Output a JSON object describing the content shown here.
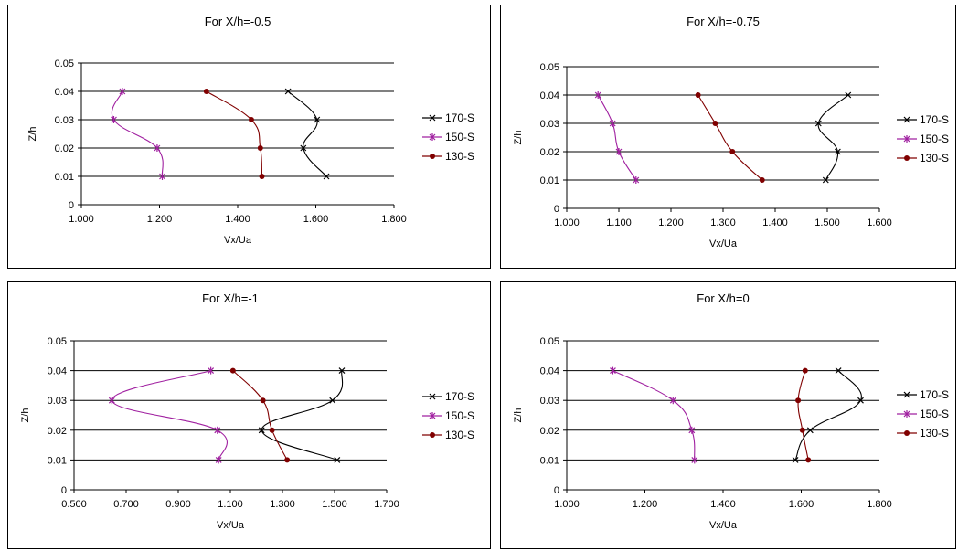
{
  "chart_data": [
    {
      "type": "line",
      "title": "For X/h=-0.5",
      "xlabel": "Vx/Ua",
      "ylabel": "Z/h",
      "xlim": [
        1.0,
        1.8
      ],
      "ylim": [
        0,
        0.05
      ],
      "xticks": [
        "1.000",
        "1.200",
        "1.400",
        "1.600",
        "1.800"
      ],
      "yticks": [
        "0",
        "0.01",
        "0.02",
        "0.03",
        "0.04",
        "0.05"
      ],
      "grid": "horizontal",
      "legend": "right",
      "series": [
        {
          "name": "170-S",
          "color": "#000000",
          "marker": "x",
          "x": [
            1.627,
            1.568,
            1.603,
            1.529
          ],
          "y": [
            0.01,
            0.02,
            0.03,
            0.04
          ]
        },
        {
          "name": "150-S",
          "color": "#a020a0",
          "marker": "star",
          "x": [
            1.207,
            1.194,
            1.083,
            1.105
          ],
          "y": [
            0.01,
            0.02,
            0.03,
            0.04
          ]
        },
        {
          "name": "130-S",
          "color": "#800000",
          "marker": "dot",
          "x": [
            1.462,
            1.458,
            1.435,
            1.32
          ],
          "y": [
            0.01,
            0.02,
            0.03,
            0.04
          ]
        }
      ]
    },
    {
      "type": "line",
      "title": "For X/h=-0.75",
      "xlabel": "Vx/Ua",
      "ylabel": "Z/h",
      "xlim": [
        1.0,
        1.6
      ],
      "ylim": [
        0,
        0.05
      ],
      "xticks": [
        "1.000",
        "1.100",
        "1.200",
        "1.300",
        "1.400",
        "1.500",
        "1.600"
      ],
      "yticks": [
        "0",
        "0.01",
        "0.02",
        "0.03",
        "0.04",
        "0.05"
      ],
      "grid": "horizontal",
      "legend": "right",
      "series": [
        {
          "name": "170-S",
          "color": "#000000",
          "marker": "x",
          "x": [
            1.497,
            1.52,
            1.483,
            1.54
          ],
          "y": [
            0.01,
            0.02,
            0.03,
            0.04
          ]
        },
        {
          "name": "150-S",
          "color": "#a020a0",
          "marker": "star",
          "x": [
            1.133,
            1.1,
            1.088,
            1.06
          ],
          "y": [
            0.01,
            0.02,
            0.03,
            0.04
          ]
        },
        {
          "name": "130-S",
          "color": "#800000",
          "marker": "dot",
          "x": [
            1.375,
            1.318,
            1.285,
            1.252
          ],
          "y": [
            0.01,
            0.02,
            0.03,
            0.04
          ]
        }
      ]
    },
    {
      "type": "line",
      "title": "For X/h=-1",
      "xlabel": "Vx/Ua",
      "ylabel": "Z/h",
      "xlim": [
        0.5,
        1.7
      ],
      "ylim": [
        0,
        0.05
      ],
      "xticks": [
        "0.500",
        "0.700",
        "0.900",
        "1.100",
        "1.300",
        "1.500",
        "1.700"
      ],
      "yticks": [
        "0",
        "0.01",
        "0.02",
        "0.03",
        "0.04",
        "0.05"
      ],
      "grid": "horizontal",
      "legend": "right",
      "series": [
        {
          "name": "170-S",
          "color": "#000000",
          "marker": "x",
          "x": [
            1.51,
            1.22,
            1.492,
            1.528
          ],
          "y": [
            0.01,
            0.02,
            0.03,
            0.04
          ]
        },
        {
          "name": "150-S",
          "color": "#a020a0",
          "marker": "star",
          "x": [
            1.055,
            1.05,
            0.645,
            1.025
          ],
          "y": [
            0.01,
            0.02,
            0.03,
            0.04
          ]
        },
        {
          "name": "130-S",
          "color": "#800000",
          "marker": "dot",
          "x": [
            1.318,
            1.26,
            1.225,
            1.11
          ],
          "y": [
            0.01,
            0.02,
            0.03,
            0.04
          ]
        }
      ]
    },
    {
      "type": "line",
      "title": "For X/h=0",
      "xlabel": "Vx/Ua",
      "ylabel": "Z/h",
      "xlim": [
        1.0,
        1.8
      ],
      "ylim": [
        0,
        0.05
      ],
      "xticks": [
        "1.000",
        "1.200",
        "1.400",
        "1.600",
        "1.800"
      ],
      "yticks": [
        "0",
        "0.01",
        "0.02",
        "0.03",
        "0.04",
        "0.05"
      ],
      "grid": "horizontal",
      "legend": "right",
      "series": [
        {
          "name": "170-S",
          "color": "#000000",
          "marker": "x",
          "x": [
            1.585,
            1.623,
            1.752,
            1.695
          ],
          "y": [
            0.01,
            0.02,
            0.03,
            0.04
          ]
        },
        {
          "name": "150-S",
          "color": "#a020a0",
          "marker": "star",
          "x": [
            1.327,
            1.32,
            1.272,
            1.118
          ],
          "y": [
            0.01,
            0.02,
            0.03,
            0.04
          ]
        },
        {
          "name": "130-S",
          "color": "#800000",
          "marker": "dot",
          "x": [
            1.618,
            1.603,
            1.592,
            1.61
          ],
          "y": [
            0.01,
            0.02,
            0.03,
            0.04
          ]
        }
      ]
    }
  ]
}
